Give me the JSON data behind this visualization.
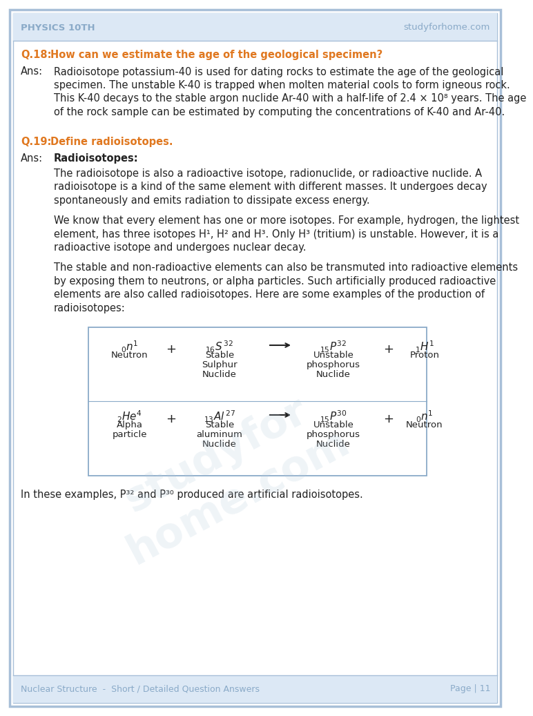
{
  "page_bg": "#ffffff",
  "border_color": "#a8bfd8",
  "header_text_left": "PHYSICS 10TH",
  "header_text_right": "studyforhome.com",
  "header_color": "#8aaac8",
  "footer_text_left": "Nuclear Structure  -  Short / Detailed Question Answers",
  "footer_text_right": "Page | 11",
  "footer_color": "#8aaac8",
  "q18_label": "Q.18:  ",
  "q18_question": "How can we estimate the age of the geological specimen?",
  "q18_ans_label": "Ans:",
  "q18_answer_lines": [
    "Radioisotope potassium-40 is used for dating rocks to estimate the age of the geological",
    "specimen. The unstable K-40 is trapped when molten material cools to form igneous rock.",
    "This K-40 decays to the stable argon nuclide Ar-40 with a half-life of 2.4 × 10⁸ years. The age",
    "of the rock sample can be estimated by computing the concentrations of K-40 and Ar-40."
  ],
  "q19_label": "Q.19:  ",
  "q19_question": "Define radioisotopes.",
  "q19_ans_label": "Ans:",
  "q19_bold_label": "Radioisotopes:",
  "q19_para1_lines": [
    "The radioisotope is also a radioactive isotope, radionuclide, or radioactive nuclide. A",
    "radioisotope is a kind of the same element with different masses. It undergoes decay",
    "spontaneously and emits radiation to dissipate excess energy."
  ],
  "q19_para2_lines": [
    "We know that every element has one or more isotopes. For example, hydrogen, the lightest",
    "element, has three isotopes H¹, H² and H³. Only H³ (tritium) is unstable. However, it is a",
    "radioactive isotope and undergoes nuclear decay."
  ],
  "q19_para3_lines": [
    "The stable and non-radioactive elements can also be transmuted into radioactive elements",
    "by exposing them to neutrons, or alpha particles. Such artificially produced radioactive",
    "elements are also called radioisotopes. Here are some examples of the production of",
    "radioisotopes:"
  ],
  "q19_final": "In these examples, P³² and P³⁰ produced are artificial radioisotopes.",
  "question_color": "#e07820",
  "text_color": "#222222",
  "box_border_color": "#8aaac8",
  "header_bg": "#dce8f5",
  "footer_bg": "#dce8f5"
}
